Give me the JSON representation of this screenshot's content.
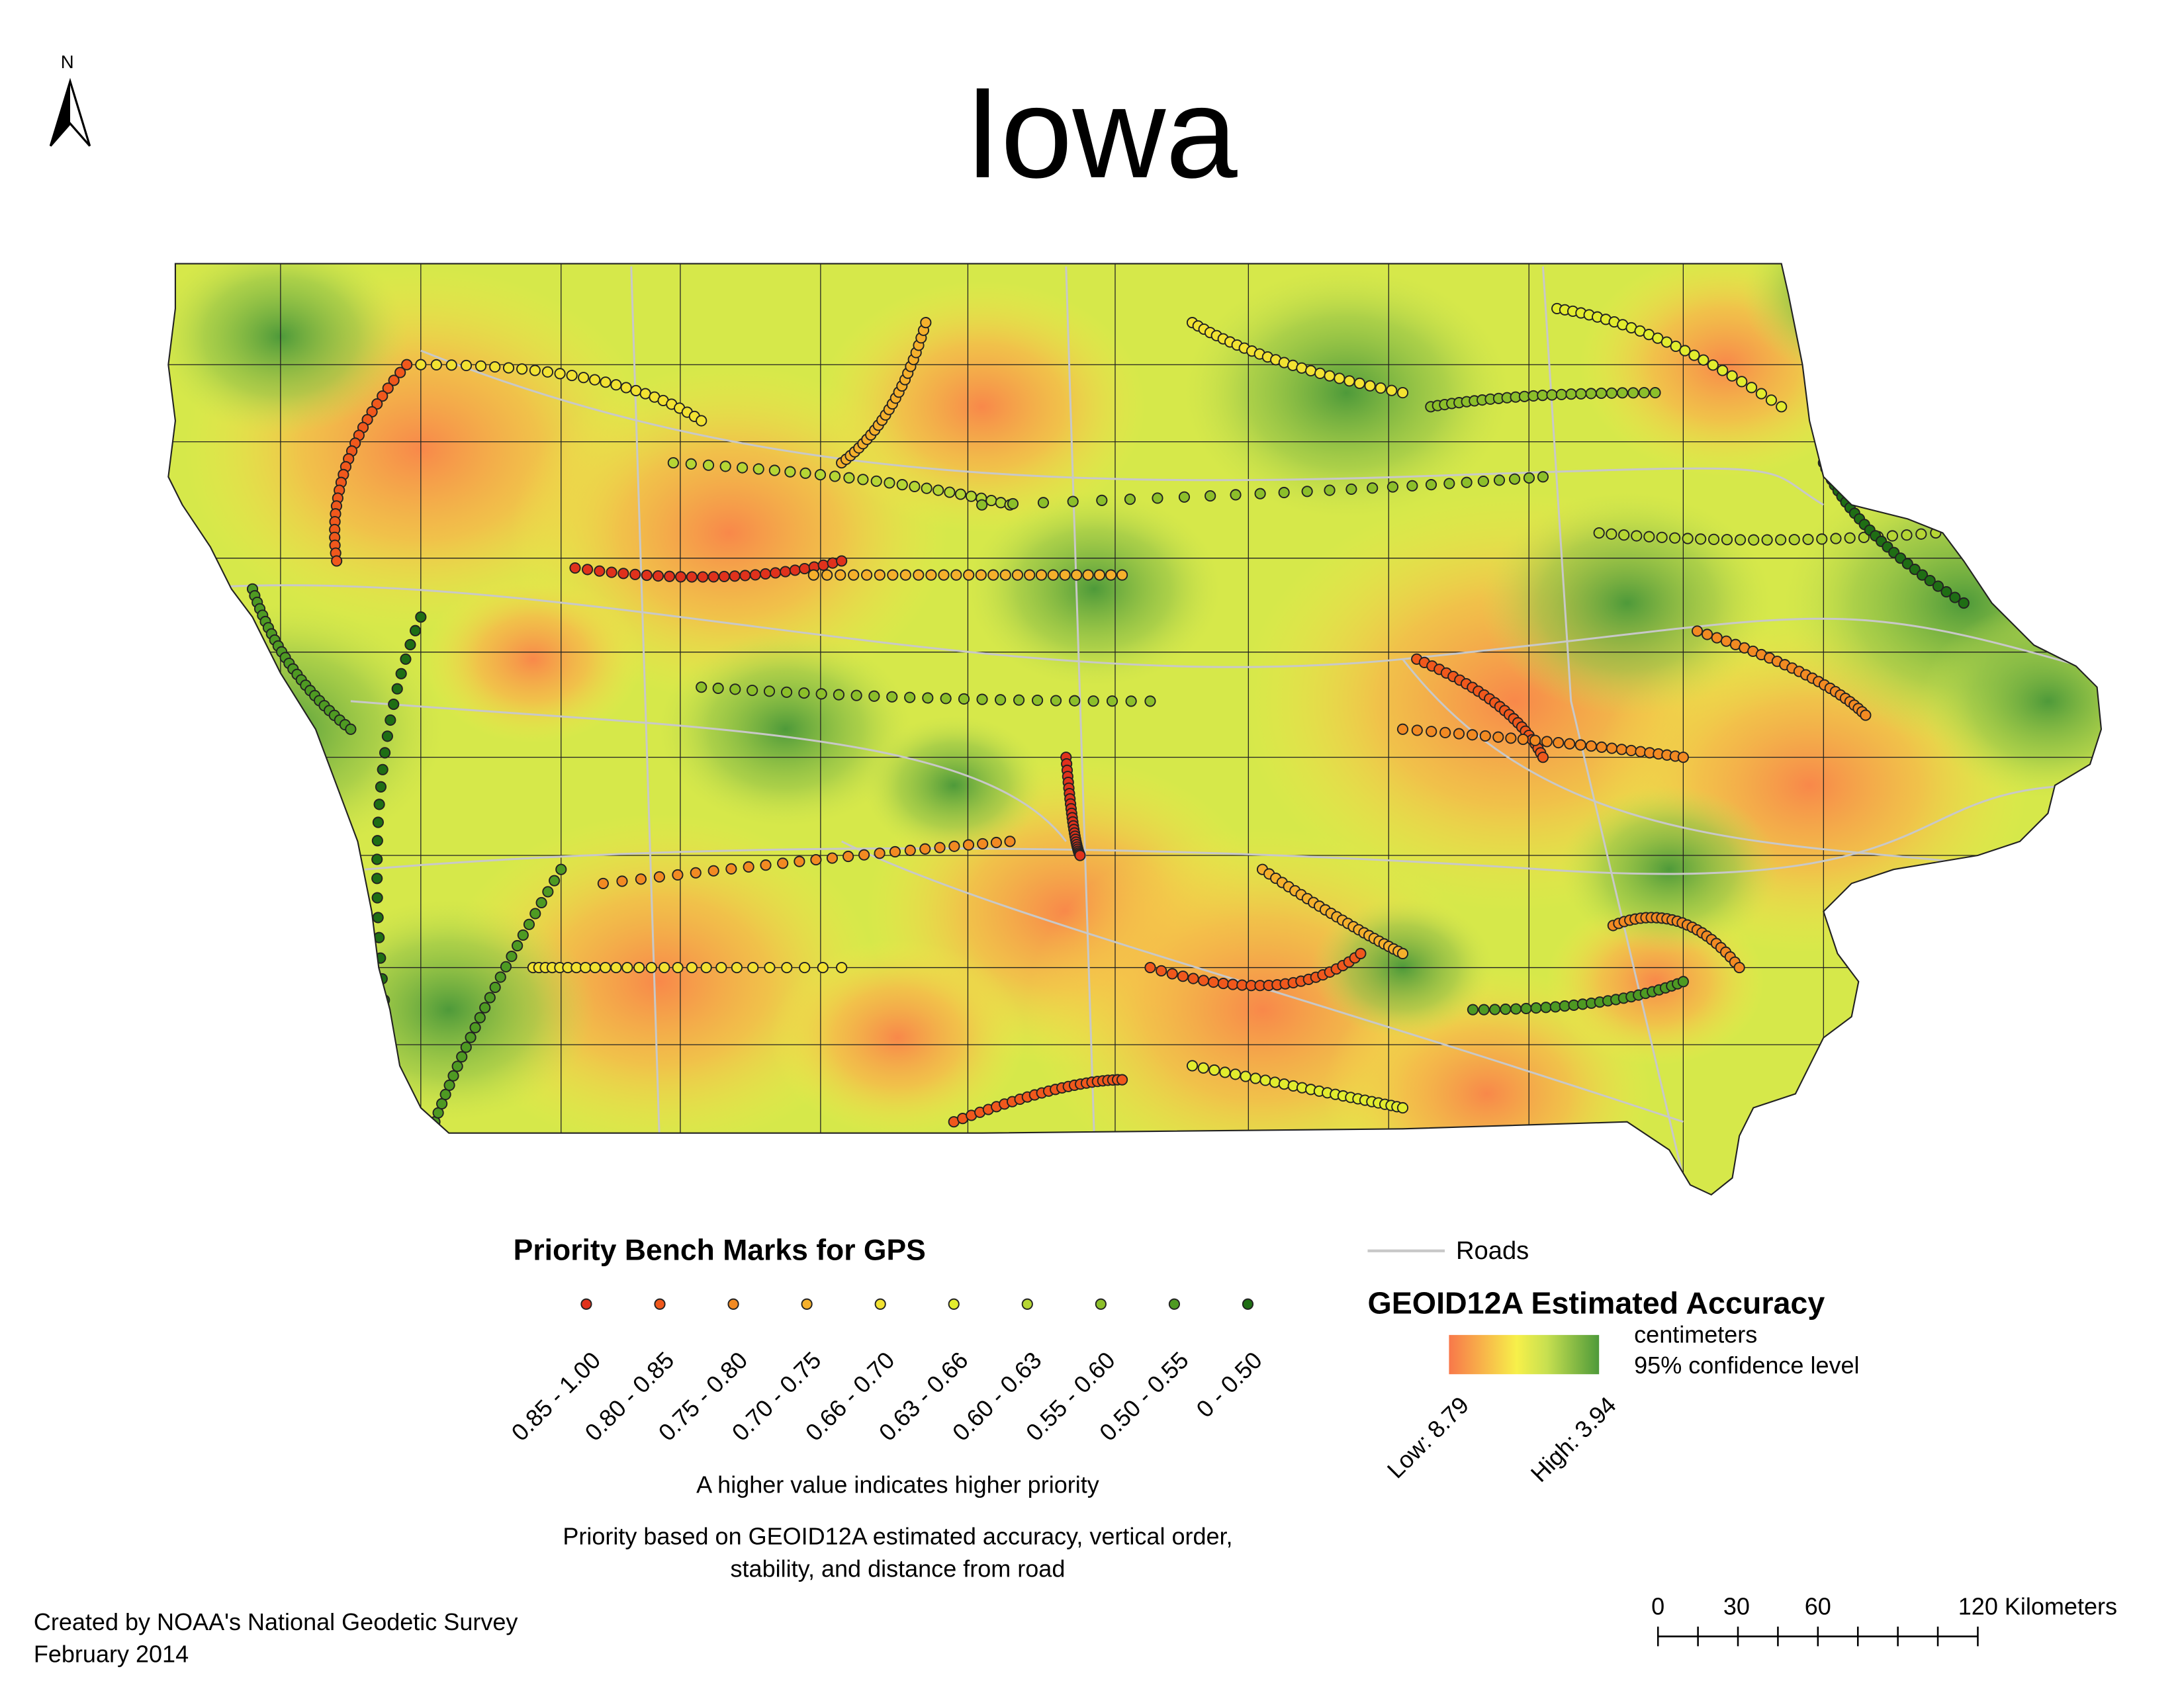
{
  "header": {
    "title": "Iowa",
    "north": "N"
  },
  "legend": {
    "title": "Priority Bench Marks for GPS",
    "classes": [
      {
        "label": "0.85 - 1.00",
        "color": "#e0321c"
      },
      {
        "label": "0.80 - 0.85",
        "color": "#f0581c"
      },
      {
        "label": "0.75 - 0.80",
        "color": "#f28a22"
      },
      {
        "label": "0.70 - 0.75",
        "color": "#f5b02c"
      },
      {
        "label": "0.66 - 0.70",
        "color": "#f2e232"
      },
      {
        "label": "0.63 - 0.66",
        "color": "#e2ec2e"
      },
      {
        "label": "0.60 - 0.63",
        "color": "#b6d634"
      },
      {
        "label": "0.55 - 0.60",
        "color": "#8cbf2a"
      },
      {
        "label": "0.50 - 0.55",
        "color": "#4e9a22"
      },
      {
        "label": "0 - 0.50",
        "color": "#1f6e14"
      }
    ],
    "note": "A higher value indicates higher priority",
    "description": [
      "Priority based on GEOID12A estimated accuracy, vertical order,",
      "stability, and distance from road"
    ]
  },
  "roads": {
    "label": "Roads"
  },
  "accuracy": {
    "title": "GEOID12A Estimated Accuracy",
    "unit": "centimeters",
    "confidence": "95% confidence level",
    "low": "Low: 8.79",
    "high": "High: 3.94"
  },
  "scale": {
    "ticks": [
      "0",
      "30",
      "60",
      "120 Kilometers"
    ]
  },
  "credit": [
    "Created by NOAA's National Geodetic Survey",
    "February 2014"
  ]
}
